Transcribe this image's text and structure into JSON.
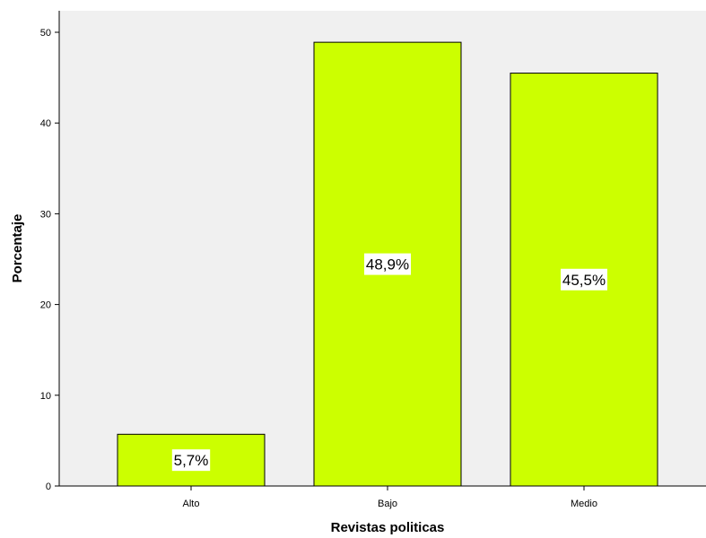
{
  "chart_data": {
    "type": "bar",
    "title": "",
    "xlabel": "Revistas politicas",
    "ylabel": "Porcentaje",
    "categories": [
      "Alto",
      "Bajo",
      "Medio"
    ],
    "values": [
      5.7,
      48.9,
      45.5
    ],
    "data_labels": [
      "5,7%",
      "48,9%",
      "45,5%"
    ],
    "ylim": [
      0,
      52.5
    ],
    "yticks": [
      0,
      10,
      20,
      30,
      40,
      50
    ],
    "ytick_labels": [
      "0",
      "10",
      "20",
      "30",
      "40",
      "50"
    ],
    "grid": false,
    "legend": "none",
    "colors": {
      "bar_fill": "#ccff00",
      "bar_stroke": "#000000",
      "plot_background": "#f0f0f0",
      "label_background": "#ffffff"
    }
  }
}
